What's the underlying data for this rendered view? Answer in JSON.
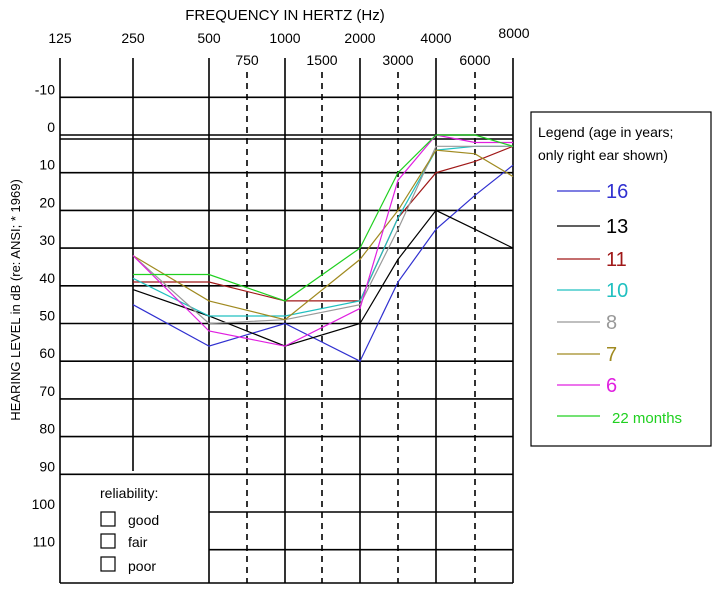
{
  "chart_data": {
    "type": "line",
    "title": "FREQUENCY IN HERTZ (Hz)",
    "xlabel": "FREQUENCY IN HERTZ (Hz)",
    "ylabel": "HEARING LEVEL in dB (re: ANSI; * 1969)",
    "ylim": [
      -20,
      120
    ],
    "y_ticks": [
      "-10",
      "0",
      "10",
      "20",
      "30",
      "40",
      "50",
      "60",
      "70",
      "80",
      "90",
      "100",
      "110"
    ],
    "x_ticks_major": [
      "125",
      "250",
      "500",
      "1000",
      "2000",
      "4000",
      "8000"
    ],
    "x_ticks_minor": [
      "750",
      "1500",
      "3000",
      "6000"
    ],
    "x_categories": [
      "250",
      "500",
      "1000",
      "2000",
      "3000",
      "4000",
      "6000",
      "8000"
    ],
    "legend_title": "Legend (age in years; only right ear shown)",
    "legend_title_lines": [
      "Legend (age in years;",
      "only right ear shown)"
    ],
    "series": [
      {
        "name": "16",
        "color": "#3030d0",
        "values": [
          45,
          56,
          50,
          60,
          39,
          25,
          16,
          8
        ]
      },
      {
        "name": "13",
        "color": "#000000",
        "values": [
          41,
          48,
          56,
          50,
          33,
          20,
          25,
          30
        ]
      },
      {
        "name": "11",
        "color": "#a01818",
        "values": [
          39,
          39,
          44,
          44,
          22,
          10,
          7,
          3
        ]
      },
      {
        "name": "10",
        "color": "#20c0c0",
        "values": [
          38,
          48,
          48,
          44,
          22,
          4,
          3,
          3
        ]
      },
      {
        "name": "8",
        "color": "#999999",
        "values": [
          32,
          50,
          49,
          45,
          25,
          3,
          3,
          3
        ]
      },
      {
        "name": "7",
        "color": "#a08a20",
        "values": [
          32,
          44,
          49,
          33,
          20,
          4,
          5,
          11
        ]
      },
      {
        "name": "6",
        "color": "#e020e0",
        "values": [
          32,
          52,
          56,
          46,
          12,
          0,
          2,
          2
        ]
      },
      {
        "name": "22 months",
        "color": "#20d020",
        "values": [
          37,
          37,
          44,
          30,
          10,
          0,
          0,
          3
        ]
      }
    ]
  },
  "reliability": {
    "title": "reliability:",
    "options": [
      "good",
      "fair",
      "poor"
    ]
  }
}
